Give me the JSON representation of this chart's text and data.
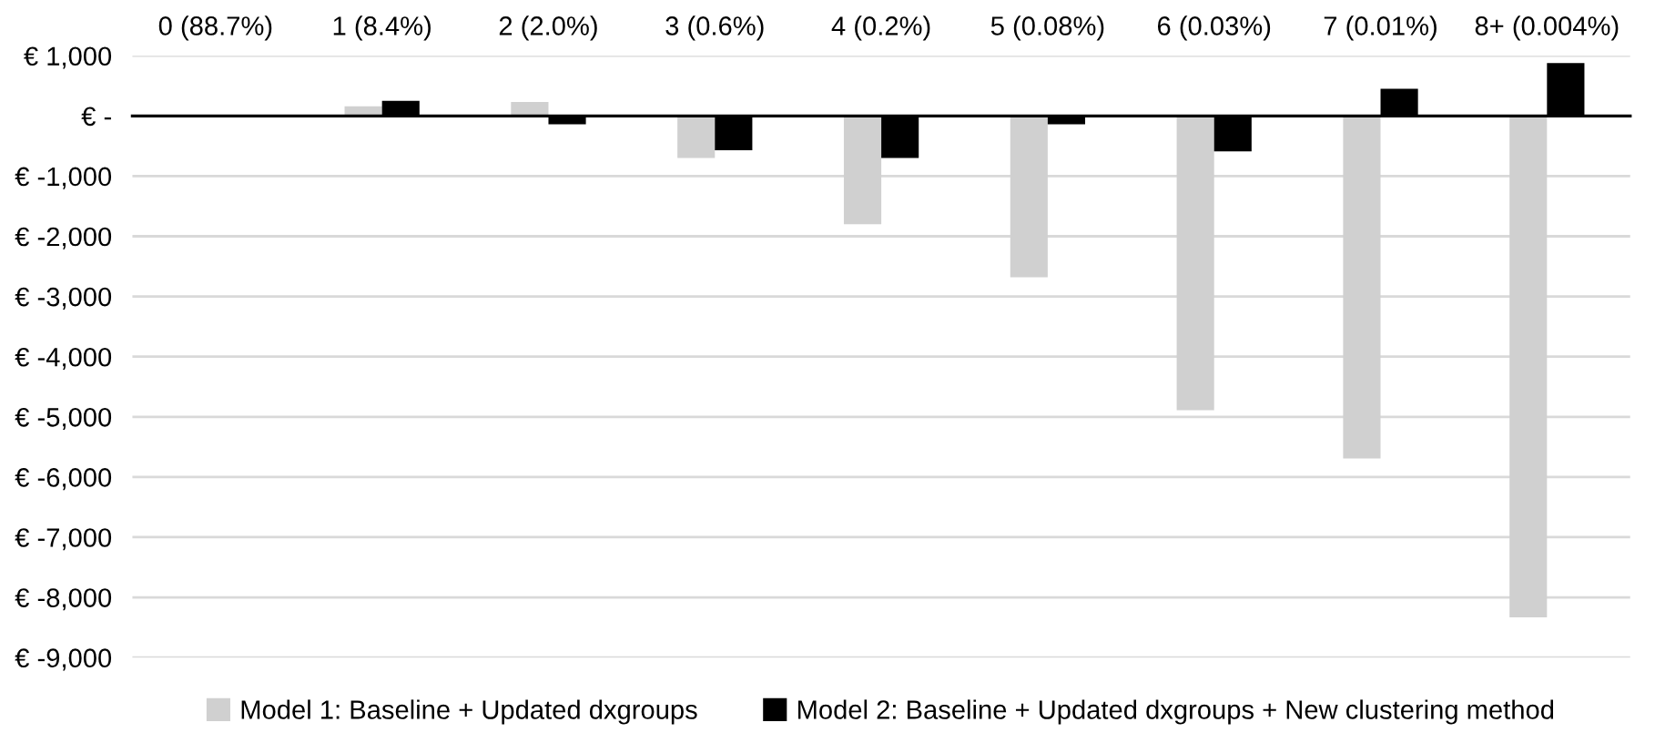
{
  "chart_data": {
    "type": "bar",
    "categories": [
      "0 (88.7%)",
      "1 (8.4%)",
      "2 (2.0%)",
      "3 (0.6%)",
      "4 (0.2%)",
      "5 (0.08%)",
      "6 (0.03%)",
      "7 (0.01%)",
      "8+ (0.004%)"
    ],
    "series": [
      {
        "name": "Model 1: Baseline + Updated dxgroups",
        "color": "#d0d0d0",
        "values": [
          -10,
          160,
          230,
          -700,
          -1800,
          -2680,
          -4890,
          -5690,
          -8330
        ]
      },
      {
        "name": "Model 2: Baseline + Updated dxgroups + New clustering method",
        "color": "#000000",
        "values": [
          -20,
          250,
          -140,
          -570,
          -700,
          -140,
          -590,
          450,
          880
        ]
      }
    ],
    "ylim": [
      -9000,
      1000
    ],
    "yticks": [
      {
        "value": 1000,
        "label": "€ 1,000"
      },
      {
        "value": 0,
        "label": "€ -"
      },
      {
        "value": -1000,
        "label": "€ -1,000"
      },
      {
        "value": -2000,
        "label": "€ -2,000"
      },
      {
        "value": -3000,
        "label": "€ -3,000"
      },
      {
        "value": -4000,
        "label": "€ -4,000"
      },
      {
        "value": -5000,
        "label": "€ -5,000"
      },
      {
        "value": -6000,
        "label": "€ -6,000"
      },
      {
        "value": -7000,
        "label": "€ -7,000"
      },
      {
        "value": -8000,
        "label": "€ -8,000"
      },
      {
        "value": -9000,
        "label": "€ -9,000"
      }
    ],
    "grid": "y",
    "legend": "bottom"
  }
}
